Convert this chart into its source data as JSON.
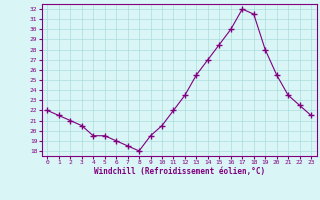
{
  "x": [
    0,
    1,
    2,
    3,
    4,
    5,
    6,
    7,
    8,
    9,
    10,
    11,
    12,
    13,
    14,
    15,
    16,
    17,
    18,
    19,
    20,
    21,
    22,
    23
  ],
  "y": [
    22.0,
    21.5,
    21.0,
    20.5,
    19.5,
    19.5,
    19.0,
    18.5,
    18.0,
    19.5,
    20.5,
    22.0,
    23.5,
    25.5,
    27.0,
    28.5,
    30.0,
    32.0,
    31.5,
    28.0,
    25.5,
    23.5,
    22.5,
    21.5
  ],
  "xlabel": "Windchill (Refroidissement éolien,°C)",
  "xlim": [
    -0.5,
    23.5
  ],
  "ylim": [
    17.5,
    32.5
  ],
  "yticks": [
    18,
    19,
    20,
    21,
    22,
    23,
    24,
    25,
    26,
    27,
    28,
    29,
    30,
    31,
    32
  ],
  "xticks": [
    0,
    1,
    2,
    3,
    4,
    5,
    6,
    7,
    8,
    9,
    10,
    11,
    12,
    13,
    14,
    15,
    16,
    17,
    18,
    19,
    20,
    21,
    22,
    23
  ],
  "line_color": "#800080",
  "marker": "+",
  "bg_color": "#d9f5f5",
  "grid_color": "#aadddd",
  "xlabel_color": "#800080",
  "tick_color": "#800080",
  "spine_color": "#800080"
}
